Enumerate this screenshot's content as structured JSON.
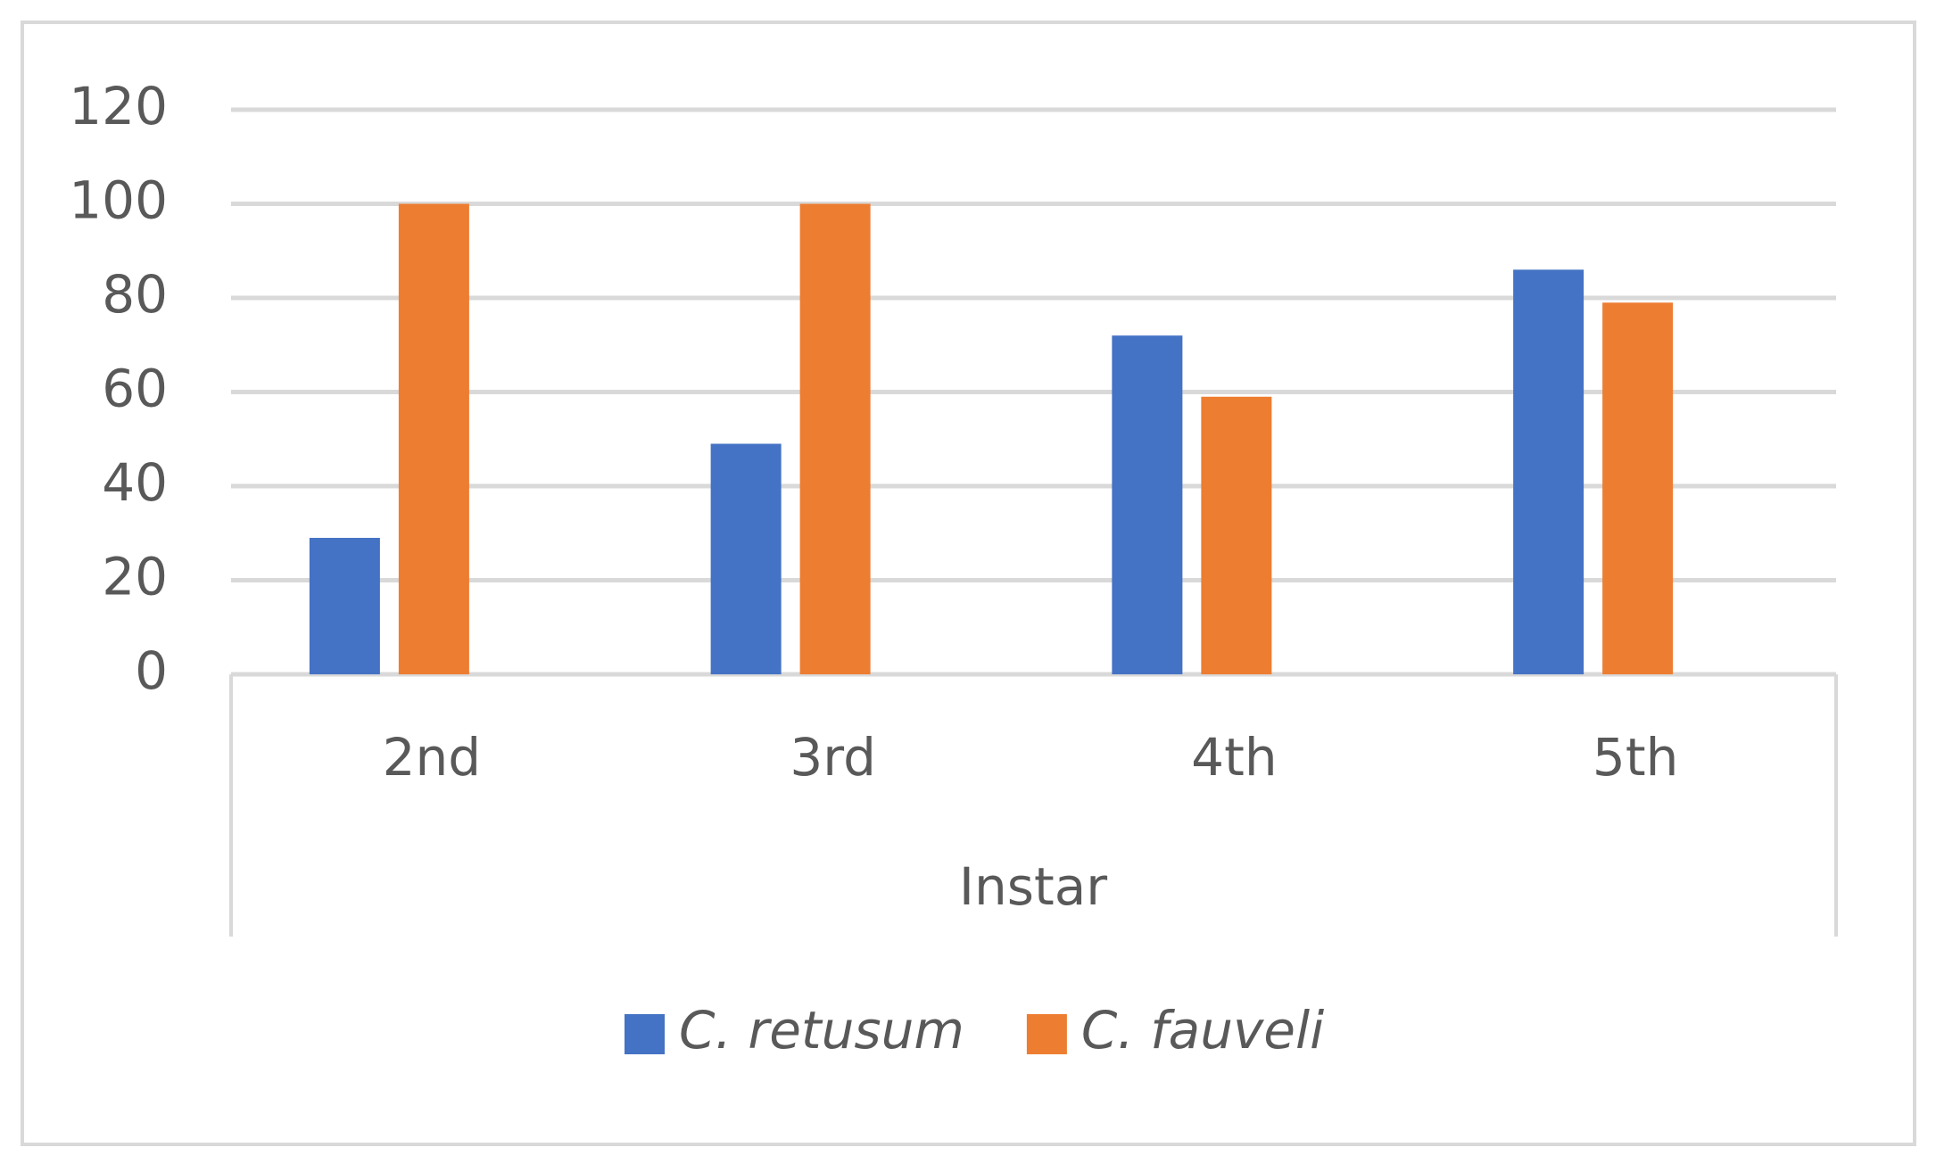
{
  "chart_data": {
    "type": "bar",
    "x_label": "Instar",
    "categories": [
      "2nd",
      "3rd",
      "4th",
      "5th"
    ],
    "series": [
      {
        "name": "C. retusum",
        "color": "#4472c4",
        "values": [
          29,
          49,
          72,
          86
        ]
      },
      {
        "name": "C. fauveli",
        "color": "#ed7d31",
        "values": [
          100,
          100,
          59,
          79
        ]
      }
    ],
    "ylim": [
      0,
      120
    ],
    "yticks": [
      0,
      20,
      40,
      60,
      80,
      100,
      120
    ],
    "grid": true,
    "legend": "bottom"
  }
}
